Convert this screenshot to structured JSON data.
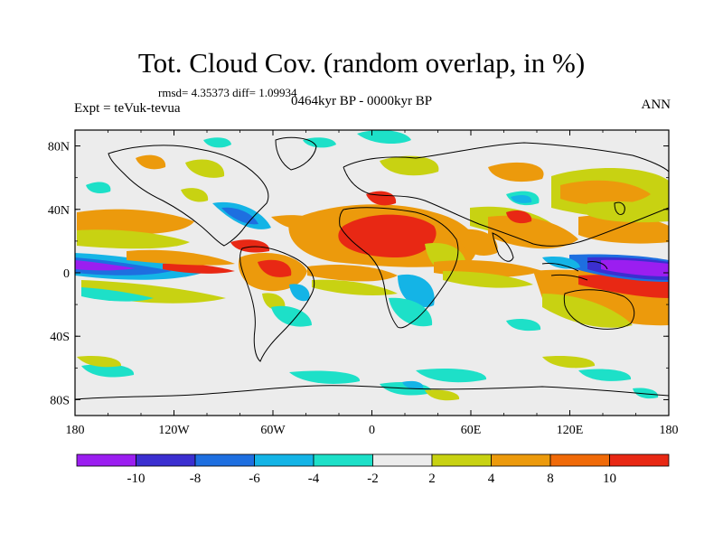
{
  "title": "Tot. Cloud Cov. (random overlap, in %)",
  "stats_line": "rmsd= 4.35373  diff= 1.09934",
  "expt_line": "Expt = teVuk-tevua",
  "period_line": "0464kyr BP - 0000kyr BP",
  "season": "ANN",
  "map": {
    "lon_ticks": [
      "180",
      "120W",
      "60W",
      "0",
      "60E",
      "120E",
      "180"
    ],
    "lat_ticks": [
      "80N",
      "40N",
      "0",
      "40S",
      "80S"
    ]
  },
  "colorbar": {
    "labels": [
      "-10",
      "-8",
      "-6",
      "-4",
      "-2",
      "2",
      "4",
      "8",
      "10"
    ],
    "colors": [
      "#9b1ef0",
      "#3b2fd0",
      "#1e6fe0",
      "#14b4e6",
      "#1de0c8",
      "#ececec",
      "#c8d212",
      "#ec9a0c",
      "#f06a08",
      "#e82814"
    ]
  },
  "palette": {
    "land_outline": "#000000",
    "background": "#ececec"
  }
}
